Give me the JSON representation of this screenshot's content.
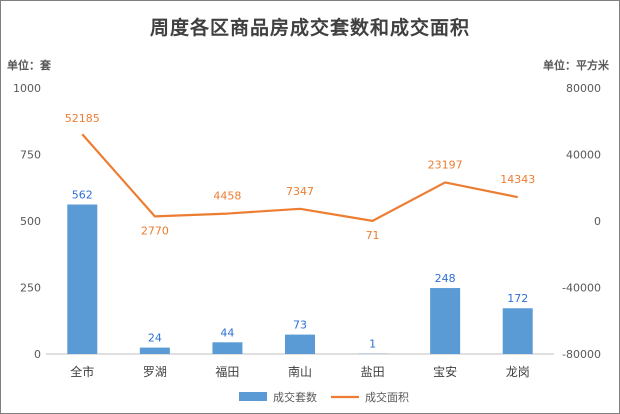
{
  "chart_data": {
    "type": "bar+line",
    "title": "周度各区商品房成交套数和成交面积",
    "left_unit": "单位：套",
    "right_unit": "单位：平方米",
    "categories": [
      "全市",
      "罗湖",
      "福田",
      "南山",
      "盐田",
      "宝安",
      "龙岗"
    ],
    "y_left": {
      "min": 0,
      "max": 1000,
      "ticks": [
        0,
        250,
        500,
        750,
        1000
      ]
    },
    "y_right": {
      "min": -80000,
      "max": 80000,
      "ticks": [
        -80000,
        -40000,
        0,
        40000,
        80000
      ]
    },
    "series": [
      {
        "name": "成交套数",
        "type": "bar",
        "axis": "left",
        "color": "#5b9bd5",
        "values": [
          562,
          24,
          44,
          73,
          1,
          248,
          172
        ]
      },
      {
        "name": "成交面积",
        "type": "line",
        "axis": "right",
        "color": "#ed7d31",
        "values": [
          52185,
          2770,
          4458,
          7347,
          71,
          23197,
          14343
        ]
      }
    ],
    "legend": "bottom",
    "grid": false
  }
}
